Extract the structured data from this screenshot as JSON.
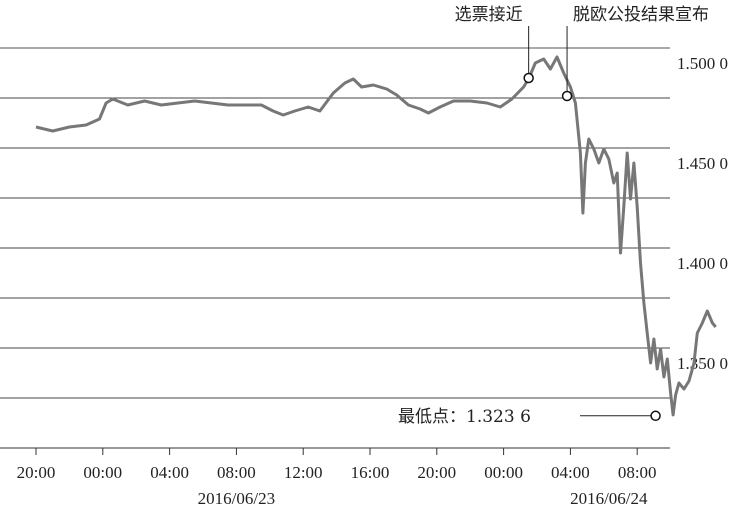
{
  "chart_data": {
    "type": "line",
    "y_tick_labels": [
      "1.500 0",
      "1.450 0",
      "1.400 0",
      "1.350 0"
    ],
    "y_ticks": [
      1.5,
      1.45,
      1.4,
      1.35
    ],
    "ylim": [
      1.3075,
      1.5075
    ],
    "x_tick_labels": [
      "20:00",
      "00:00",
      "04:00",
      "08:00",
      "12:00",
      "16:00",
      "20:00",
      "00:00",
      "04:00",
      "08:00"
    ],
    "x_tick_hours": [
      0,
      4,
      8,
      12,
      16,
      20,
      24,
      28,
      32,
      36
    ],
    "x_units": "hours since 2016/06/22 20:00",
    "date_labels": [
      "2016/06/23",
      "2016/06/24"
    ],
    "grid": true,
    "annotations": [
      {
        "text": "选票接近",
        "x": 29.5,
        "y": 1.4925
      },
      {
        "text": "脱欧公投结果宣布",
        "x": 31.8,
        "y": 1.4835
      },
      {
        "text": "最低点：1.323 6",
        "x": 37.1,
        "y": 1.3236
      }
    ],
    "series": [
      {
        "color": "#777777",
        "points": [
          [
            0,
            1.468
          ],
          [
            1,
            1.466
          ],
          [
            2,
            1.468
          ],
          [
            3,
            1.469
          ],
          [
            3.8,
            1.472
          ],
          [
            4.2,
            1.48
          ],
          [
            4.6,
            1.482
          ],
          [
            5.5,
            1.479
          ],
          [
            6.5,
            1.481
          ],
          [
            7.5,
            1.479
          ],
          [
            8.5,
            1.48
          ],
          [
            9.5,
            1.481
          ],
          [
            10.5,
            1.48
          ],
          [
            11.5,
            1.479
          ],
          [
            12.5,
            1.479
          ],
          [
            13.5,
            1.479
          ],
          [
            14.2,
            1.476
          ],
          [
            14.8,
            1.474
          ],
          [
            15.5,
            1.476
          ],
          [
            16.3,
            1.478
          ],
          [
            17,
            1.476
          ],
          [
            17.8,
            1.485
          ],
          [
            18.5,
            1.49
          ],
          [
            19,
            1.492
          ],
          [
            19.5,
            1.488
          ],
          [
            20.2,
            1.489
          ],
          [
            21,
            1.487
          ],
          [
            21.6,
            1.484
          ],
          [
            22.3,
            1.479
          ],
          [
            23,
            1.477
          ],
          [
            23.5,
            1.475
          ],
          [
            24.2,
            1.478
          ],
          [
            25,
            1.481
          ],
          [
            26,
            1.481
          ],
          [
            27,
            1.48
          ],
          [
            27.8,
            1.478
          ],
          [
            28.5,
            1.482
          ],
          [
            29.2,
            1.488
          ],
          [
            29.5,
            1.492
          ],
          [
            29.9,
            1.5
          ],
          [
            30.4,
            1.502
          ],
          [
            30.8,
            1.497
          ],
          [
            31.2,
            1.503
          ],
          [
            31.6,
            1.495
          ],
          [
            32,
            1.488
          ],
          [
            32.3,
            1.48
          ],
          [
            32.6,
            1.455
          ],
          [
            32.75,
            1.425
          ],
          [
            32.9,
            1.45
          ],
          [
            33.1,
            1.462
          ],
          [
            33.4,
            1.457
          ],
          [
            33.7,
            1.45
          ],
          [
            34.0,
            1.457
          ],
          [
            34.3,
            1.452
          ],
          [
            34.6,
            1.44
          ],
          [
            34.8,
            1.445
          ],
          [
            35.0,
            1.405
          ],
          [
            35.2,
            1.428
          ],
          [
            35.4,
            1.455
          ],
          [
            35.6,
            1.432
          ],
          [
            35.8,
            1.45
          ],
          [
            36.0,
            1.428
          ],
          [
            36.2,
            1.4
          ],
          [
            36.4,
            1.38
          ],
          [
            36.6,
            1.365
          ],
          [
            36.8,
            1.35
          ],
          [
            37.0,
            1.362
          ],
          [
            37.2,
            1.347
          ],
          [
            37.4,
            1.357
          ],
          [
            37.6,
            1.343
          ],
          [
            37.8,
            1.352
          ],
          [
            38.0,
            1.335
          ],
          [
            38.15,
            1.324
          ],
          [
            38.3,
            1.334
          ],
          [
            38.5,
            1.34
          ],
          [
            38.8,
            1.337
          ],
          [
            39.1,
            1.341
          ],
          [
            39.4,
            1.35
          ],
          [
            39.6,
            1.365
          ],
          [
            39.9,
            1.37
          ],
          [
            40.2,
            1.376
          ],
          [
            40.5,
            1.37
          ],
          [
            40.7,
            1.368
          ]
        ]
      }
    ]
  }
}
